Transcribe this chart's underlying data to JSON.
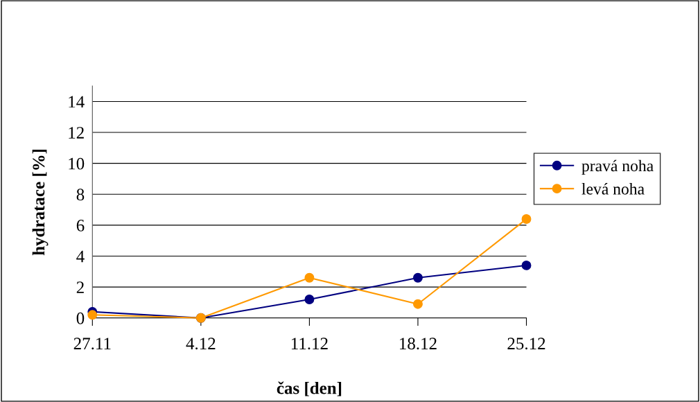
{
  "chart_data": {
    "type": "line",
    "xlabel": "čas [den]",
    "ylabel": "hydratace [%]",
    "categories": [
      "27.11",
      "4.12",
      "11.12",
      "18.12",
      "25.12"
    ],
    "series": [
      {
        "name": "pravá noha",
        "color": "#000080",
        "values": [
          0.4,
          0,
          1.2,
          2.6,
          3.4
        ]
      },
      {
        "name": "levá noha",
        "color": "#ff9900",
        "values": [
          0.2,
          0,
          2.6,
          0.9,
          6.4
        ]
      }
    ],
    "ylim": [
      0,
      15
    ],
    "yticks": [
      0,
      2,
      4,
      6,
      8,
      10,
      12,
      14
    ],
    "grid": "y",
    "legend": "right",
    "marker": "circle",
    "line_style": "solid"
  }
}
